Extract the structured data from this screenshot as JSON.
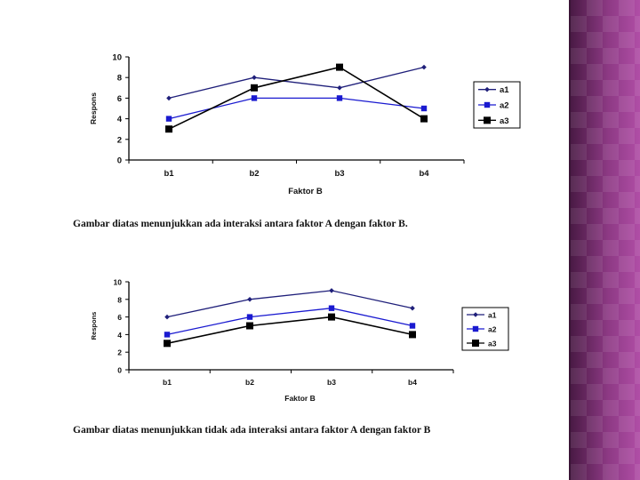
{
  "colors": {
    "a1": "#1f1f7a",
    "a2": "#1a1ad0",
    "a3": "#000000",
    "panel": "#8e3a85"
  },
  "captions": {
    "first": "Gambar  diatas  menunjukkan  ada interaksi antara faktor A dengan faktor B.",
    "second": "Gambar  diatas  menunjukkan tidak ada interaksi antara faktor A dengan faktor B"
  },
  "chart_data": [
    {
      "type": "line",
      "xlabel": "Faktor B",
      "ylabel": "Respons",
      "categories": [
        "b1",
        "b2",
        "b3",
        "b4"
      ],
      "ylim": [
        0,
        10
      ],
      "yticks": [
        0,
        2,
        4,
        6,
        8,
        10
      ],
      "legend": "right",
      "series": [
        {
          "name": "a1",
          "values": [
            6,
            8,
            7,
            9
          ],
          "marker": "diamond"
        },
        {
          "name": "a2",
          "values": [
            4,
            6,
            6,
            5
          ],
          "marker": "square"
        },
        {
          "name": "a3",
          "values": [
            3,
            7,
            9,
            4
          ],
          "marker": "square"
        }
      ]
    },
    {
      "type": "line",
      "xlabel": "Faktor B",
      "ylabel": "Respons",
      "categories": [
        "b1",
        "b2",
        "b3",
        "b4"
      ],
      "ylim": [
        0,
        10
      ],
      "yticks": [
        0,
        2,
        4,
        6,
        8,
        10
      ],
      "legend": "right",
      "series": [
        {
          "name": "a1",
          "values": [
            6,
            8,
            9,
            7
          ],
          "marker": "diamond"
        },
        {
          "name": "a2",
          "values": [
            4,
            6,
            7,
            5
          ],
          "marker": "square"
        },
        {
          "name": "a3",
          "values": [
            3,
            5,
            6,
            4
          ],
          "marker": "square"
        }
      ]
    }
  ]
}
